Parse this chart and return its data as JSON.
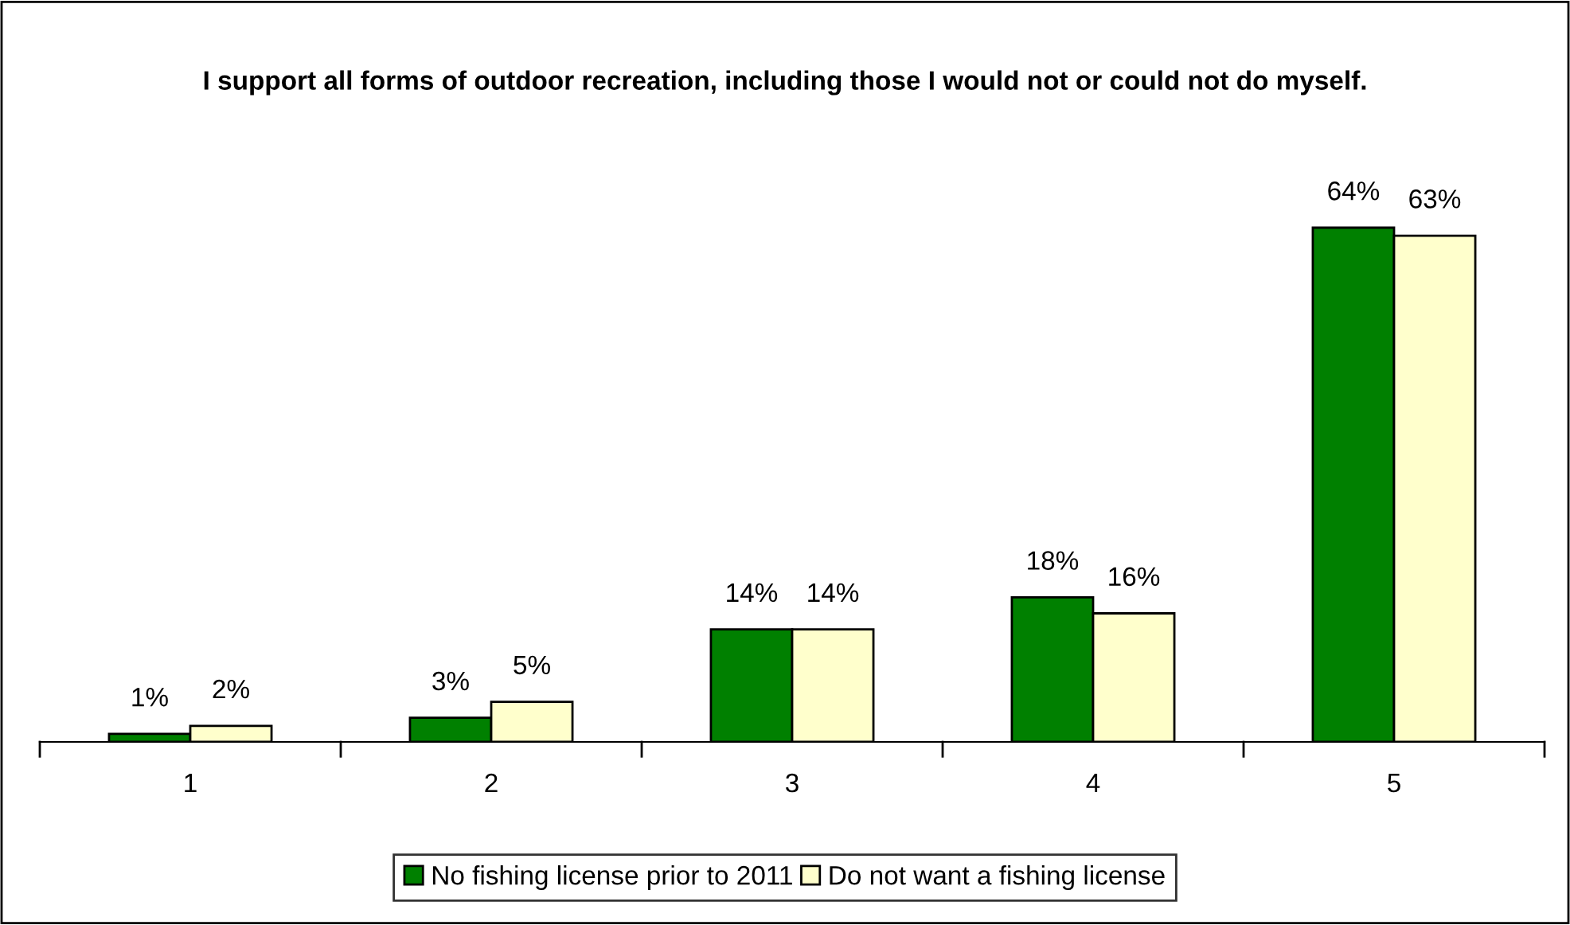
{
  "chart_data": {
    "type": "bar",
    "title": "I support all forms of outdoor recreation, including those I would not or could not do myself.",
    "categories": [
      "1",
      "2",
      "3",
      "4",
      "5"
    ],
    "series": [
      {
        "name": "No fishing license prior to 2011",
        "color": "#008000",
        "values": [
          1,
          3,
          14,
          18,
          64
        ],
        "value_labels": [
          "1%",
          "3%",
          "14%",
          "18%",
          "64%"
        ]
      },
      {
        "name": "Do not want a fishing license",
        "color": "#ffffcc",
        "values": [
          2,
          5,
          14,
          16,
          63
        ],
        "value_labels": [
          "2%",
          "5%",
          "14%",
          "16%",
          "63%"
        ]
      }
    ],
    "grid": false,
    "legend": "bottom"
  }
}
